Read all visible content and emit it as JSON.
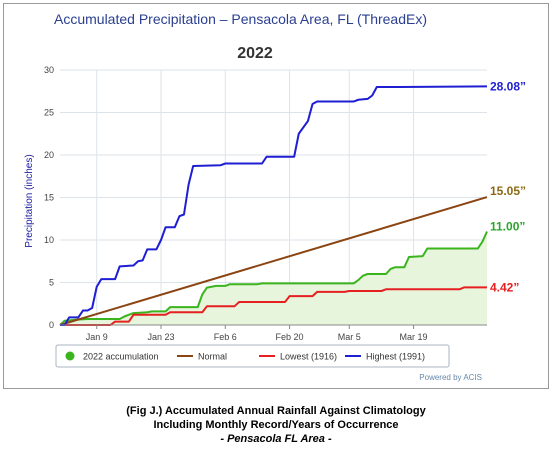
{
  "chart_data": {
    "type": "line",
    "title": "Accumulated Precipitation – Pensacola Area, FL (ThreadEx)",
    "subtitle": "2022",
    "ylabel": "Precipitation (inches)",
    "xlabel": "",
    "ylim": [
      0,
      30
    ],
    "y_ticks": [
      0,
      5,
      10,
      15,
      20,
      25,
      30
    ],
    "x_range_day": [
      1,
      81
    ],
    "x_ticks": [
      {
        "label": "Jan 9",
        "day": 9
      },
      {
        "label": "Jan 23",
        "day": 23
      },
      {
        "label": "Feb 6",
        "day": 37
      },
      {
        "label": "Feb 20",
        "day": 51
      },
      {
        "label": "Mar 5",
        "day": 64
      },
      {
        "label": "Mar 19",
        "day": 78
      }
    ],
    "grid": true,
    "legend_position": "bottom",
    "series": [
      {
        "name": "2022 accumulation",
        "color": "#3cb41e",
        "fill": "#e6f5dc",
        "end_label": "11.00”",
        "end_label_color": "#2aa52a",
        "points": [
          [
            1,
            0
          ],
          [
            2,
            0.5
          ],
          [
            4,
            0.6
          ],
          [
            7,
            0.7
          ],
          [
            14,
            0.7
          ],
          [
            15,
            1.0
          ],
          [
            17,
            1.4
          ],
          [
            20,
            1.5
          ],
          [
            21,
            1.6
          ],
          [
            24,
            1.6
          ],
          [
            25,
            2.1
          ],
          [
            31,
            2.1
          ],
          [
            32,
            3.6
          ],
          [
            33,
            4.4
          ],
          [
            34,
            4.5
          ],
          [
            35,
            4.6
          ],
          [
            37,
            4.6
          ],
          [
            38,
            4.8
          ],
          [
            44,
            4.8
          ],
          [
            45,
            4.9
          ],
          [
            65,
            4.9
          ],
          [
            66,
            5.3
          ],
          [
            67,
            5.8
          ],
          [
            68,
            6.0
          ],
          [
            72,
            6.0
          ],
          [
            73,
            6.6
          ],
          [
            74,
            6.8
          ],
          [
            76,
            6.8
          ],
          [
            77,
            8.0
          ],
          [
            80,
            8.1
          ],
          [
            81,
            9.0
          ],
          [
            92,
            9.0
          ],
          [
            93,
            9.8
          ],
          [
            94,
            11.0
          ]
        ]
      },
      {
        "name": "Normal",
        "color": "#8b4513",
        "end_label": "15.05”",
        "end_label_color": "#8b6914",
        "points": [
          [
            1,
            0
          ],
          [
            94,
            15.05
          ]
        ]
      },
      {
        "name": "Lowest (1916)",
        "color": "#e62020",
        "end_label": "4.42”",
        "end_label_color": "#e62020",
        "points": [
          [
            1,
            0
          ],
          [
            12,
            0
          ],
          [
            13,
            0.4
          ],
          [
            16,
            0.4
          ],
          [
            17,
            1.2
          ],
          [
            24,
            1.2
          ],
          [
            25,
            1.5
          ],
          [
            32,
            1.5
          ],
          [
            33,
            2.2
          ],
          [
            39,
            2.2
          ],
          [
            40,
            2.7
          ],
          [
            50,
            2.7
          ],
          [
            51,
            3.4
          ],
          [
            56,
            3.4
          ],
          [
            57,
            3.9
          ],
          [
            63,
            3.9
          ],
          [
            64,
            4.0
          ],
          [
            71,
            4.0
          ],
          [
            72,
            4.2
          ],
          [
            82,
            4.2
          ],
          [
            88,
            4.2
          ],
          [
            89,
            4.42
          ],
          [
            94,
            4.42
          ]
        ]
      },
      {
        "name": "Highest (1991)",
        "color": "#1e1ed2",
        "end_label": "28.08”",
        "end_label_color": "#1e1ed2",
        "points": [
          [
            1,
            0
          ],
          [
            2,
            0
          ],
          [
            3,
            0.9
          ],
          [
            5,
            0.9
          ],
          [
            6,
            1.7
          ],
          [
            7,
            1.7
          ],
          [
            8,
            2.0
          ],
          [
            9,
            4.5
          ],
          [
            10,
            5.4
          ],
          [
            13,
            5.4
          ],
          [
            14,
            6.9
          ],
          [
            17,
            7.0
          ],
          [
            18,
            7.5
          ],
          [
            19,
            7.6
          ],
          [
            20,
            8.9
          ],
          [
            22,
            8.9
          ],
          [
            23,
            10.0
          ],
          [
            24,
            11.5
          ],
          [
            26,
            11.5
          ],
          [
            27,
            12.8
          ],
          [
            28,
            13.0
          ],
          [
            29,
            16.5
          ],
          [
            30,
            18.7
          ],
          [
            36,
            18.8
          ],
          [
            37,
            19.0
          ],
          [
            45,
            19.0
          ],
          [
            46,
            19.8
          ],
          [
            52,
            19.8
          ],
          [
            53,
            22.5
          ],
          [
            55,
            24.0
          ],
          [
            56,
            26.0
          ],
          [
            57,
            26.3
          ],
          [
            65,
            26.3
          ],
          [
            66,
            26.5
          ],
          [
            68,
            26.6
          ],
          [
            69,
            27.0
          ],
          [
            70,
            28.0
          ],
          [
            75,
            28.0
          ],
          [
            94,
            28.08
          ]
        ]
      }
    ]
  },
  "powered_by": "Powered by ACIS",
  "caption": {
    "line1": "(Fig J.) Accumulated Annual Rainfall Against  Climatology",
    "line2": "Including Monthly Record/Years of Occurrence",
    "line3": "- Pensacola FL Area -"
  }
}
